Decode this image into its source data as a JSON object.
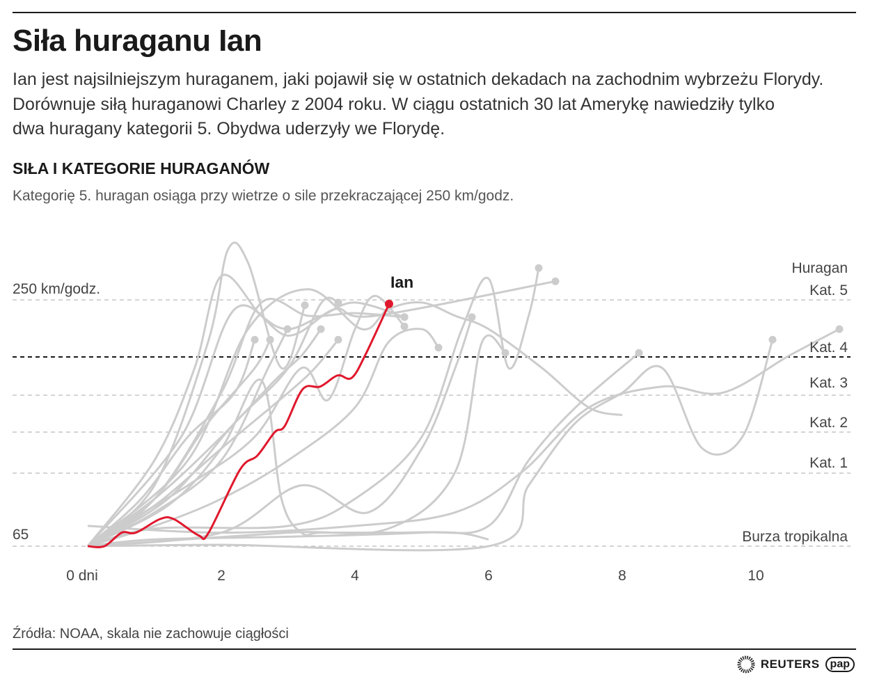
{
  "header": {
    "title": "Siła huraganu Ian",
    "description": [
      "Ian jest najsilniejszym huraganem, jaki pojawił się w ostatnich dekadach na zachodnim wybrzeżu Florydy.",
      "Dorównuje siłą huraganowi Charley z 2004 roku. W ciągu ostatnich 30 lat Amerykę nawiedziły tylko",
      "dwa huragany kategorii 5. Obydwa uderzyły we Florydę."
    ],
    "subtitle": "SIŁA I KATEGORIE HURAGANÓW",
    "note": "Kategorię 5. huragan osiąga przy wietrze o sile przekraczającej 250 km/godz."
  },
  "footer": {
    "source": "Źródła: NOAA, skala nie zachowuje ciągłości",
    "logos": [
      "REUTERS",
      "pap"
    ]
  },
  "chart_data": {
    "type": "line",
    "title": "SIŁA I KATEGORIE HURAGANÓW",
    "xlabel": "",
    "ylabel": "",
    "x_ticks": [
      {
        "value": 0,
        "label": "0 dni"
      },
      {
        "value": 2,
        "label": "2"
      },
      {
        "value": 4,
        "label": "4"
      },
      {
        "value": 6,
        "label": "6"
      },
      {
        "value": 8,
        "label": "8"
      },
      {
        "value": 10,
        "label": "10"
      }
    ],
    "y_labels": [
      {
        "value": 252,
        "label": "250 km/godz."
      },
      {
        "value": 65,
        "label": "65"
      }
    ],
    "y_scale": "piecewise (non-continuous)",
    "categories": [
      {
        "name": "Burza tropikalna",
        "value": 65
      },
      {
        "name": "Kat. 1",
        "value": 119
      },
      {
        "name": "Kat. 2",
        "value": 154
      },
      {
        "name": "Kat. 3",
        "value": 178
      },
      {
        "name": "Kat. 4",
        "value": 209,
        "emphasis": true
      },
      {
        "name": "Huragan Kat. 5",
        "value": 252,
        "line1": "Huragan",
        "line2": "Kat. 5"
      }
    ],
    "colors": {
      "highlight": "#e0182d",
      "others": "#cccccc",
      "grid": "#bbbbbb"
    },
    "highlight": {
      "name": "Ian",
      "points": [
        [
          0,
          65
        ],
        [
          0.25,
          65
        ],
        [
          0.51,
          75
        ],
        [
          0.72,
          75
        ],
        [
          1.08,
          85
        ],
        [
          1.29,
          85
        ],
        [
          1.66,
          73
        ],
        [
          1.81,
          75
        ],
        [
          2.28,
          122
        ],
        [
          2.54,
          134
        ],
        [
          2.8,
          154
        ],
        [
          2.95,
          158
        ],
        [
          3.22,
          183
        ],
        [
          3.48,
          185
        ],
        [
          3.74,
          194
        ],
        [
          3.95,
          192
        ],
        [
          4.16,
          211
        ],
        [
          4.51,
          249
        ]
      ]
    },
    "others": [
      {
        "points": [
          [
            0,
            65
          ],
          [
            1,
            110
          ],
          [
            1.8,
            220
          ],
          [
            2.1,
            290
          ],
          [
            2.4,
            280
          ],
          [
            2.9,
            200
          ],
          [
            3.25,
            248
          ]
        ],
        "end_dot": true
      },
      {
        "points": [
          [
            0,
            65
          ],
          [
            1,
            130
          ],
          [
            1.6,
            200
          ],
          [
            2,
            270
          ],
          [
            2.6,
            240
          ],
          [
            3,
            230
          ],
          [
            3.5,
            240
          ],
          [
            4,
            250
          ],
          [
            4.74,
            239
          ]
        ],
        "end_dot": true
      },
      {
        "points": [
          [
            0,
            65
          ],
          [
            0.8,
            100
          ],
          [
            1.5,
            150
          ],
          [
            2.2,
            180
          ],
          [
            2.5,
            222
          ]
        ],
        "end_dot": true
      },
      {
        "points": [
          [
            0,
            65
          ],
          [
            1,
            100
          ],
          [
            1.8,
            160
          ],
          [
            2.5,
            200
          ],
          [
            2.73,
            222
          ]
        ],
        "end_dot": true
      },
      {
        "points": [
          [
            0,
            65
          ],
          [
            1,
            90
          ],
          [
            2,
            130
          ],
          [
            2.7,
            200
          ],
          [
            2.99,
            230
          ]
        ],
        "end_dot": true
      },
      {
        "points": [
          [
            0,
            65
          ],
          [
            1.2,
            95
          ],
          [
            2,
            140
          ],
          [
            2.6,
            190
          ],
          [
            2.9,
            100
          ],
          [
            3.2,
            75
          ],
          [
            3.5,
            75
          ],
          [
            4.5,
            75
          ],
          [
            5.5,
            75
          ],
          [
            6,
            70
          ]
        ],
        "end_dot": false
      },
      {
        "points": [
          [
            0,
            65
          ],
          [
            1,
            100
          ],
          [
            2,
            150
          ],
          [
            2.8,
            190
          ],
          [
            3.2,
            210
          ],
          [
            3.49,
            230
          ]
        ],
        "end_dot": true
      },
      {
        "points": [
          [
            0,
            65
          ],
          [
            1.2,
            100
          ],
          [
            2.2,
            160
          ],
          [
            3,
            200
          ],
          [
            3.5,
            250
          ],
          [
            3.75,
            250
          ]
        ],
        "end_dot": true
      },
      {
        "points": [
          [
            0,
            65
          ],
          [
            1,
            95
          ],
          [
            2,
            140
          ],
          [
            3,
            180
          ],
          [
            3.4,
            200
          ],
          [
            3.75,
            222
          ]
        ],
        "end_dot": true
      },
      {
        "points": [
          [
            0,
            65
          ],
          [
            0.5,
            80
          ],
          [
            1.5,
            110
          ],
          [
            2.5,
            150
          ],
          [
            3.2,
            200
          ],
          [
            3.6,
            175
          ],
          [
            4,
            230
          ],
          [
            4.3,
            255
          ],
          [
            4.74,
            232
          ]
        ],
        "end_dot": true
      },
      {
        "points": [
          [
            0,
            65
          ],
          [
            1,
            80
          ],
          [
            2,
            100
          ],
          [
            3,
            130
          ],
          [
            4,
            170
          ],
          [
            4.5,
            220
          ],
          [
            5,
            230
          ],
          [
            5.25,
            216
          ]
        ],
        "end_dot": true
      },
      {
        "points": [
          [
            0,
            65
          ],
          [
            2,
            75
          ],
          [
            3.2,
            110
          ],
          [
            4.2,
            90
          ],
          [
            5,
            140
          ],
          [
            5.5,
            200
          ],
          [
            5.75,
            239
          ]
        ],
        "end_dot": true
      },
      {
        "points": [
          [
            0,
            65
          ],
          [
            1,
            78
          ],
          [
            3,
            80
          ],
          [
            4,
            100
          ],
          [
            5,
            150
          ],
          [
            5.6,
            230
          ],
          [
            6,
            268
          ],
          [
            6.3,
            200
          ],
          [
            6.6,
            240
          ],
          [
            6.75,
            276
          ]
        ],
        "end_dot": true
      },
      {
        "points": [
          [
            0,
            65
          ],
          [
            3,
            75
          ],
          [
            4.5,
            78
          ],
          [
            5.5,
            120
          ],
          [
            5.9,
            220
          ],
          [
            6.25,
            212
          ]
        ],
        "end_dot": true
      },
      {
        "points": [
          [
            0,
            65
          ],
          [
            1,
            70
          ],
          [
            3,
            72
          ],
          [
            5,
            75
          ],
          [
            6,
            80
          ],
          [
            6.6,
            130
          ],
          [
            7.3,
            170
          ],
          [
            8.25,
            212
          ]
        ],
        "end_dot": true
      },
      {
        "points": [
          [
            0,
            65
          ],
          [
            2,
            66
          ],
          [
            6,
            65
          ],
          [
            6.6,
            110
          ],
          [
            7.3,
            160
          ],
          [
            8,
            180
          ],
          [
            8.6,
            200
          ],
          [
            9.2,
            140
          ],
          [
            9.8,
            150
          ],
          [
            10.25,
            222
          ]
        ],
        "end_dot": true
      },
      {
        "points": [
          [
            0,
            80
          ],
          [
            2,
            75
          ],
          [
            4,
            80
          ],
          [
            5.5,
            90
          ],
          [
            6.5,
            120
          ],
          [
            7.5,
            170
          ],
          [
            8.6,
            185
          ],
          [
            9.5,
            180
          ],
          [
            10.5,
            210
          ],
          [
            11.25,
            230
          ]
        ],
        "end_dot": true
      },
      {
        "points": [
          [
            0,
            65
          ],
          [
            1.5,
            130
          ],
          [
            2.4,
            230
          ],
          [
            3.3,
            260
          ],
          [
            4.1,
            230
          ],
          [
            4.5,
            245
          ],
          [
            5,
            250
          ],
          [
            5.5,
            240
          ],
          [
            6,
            230
          ],
          [
            6.8,
            200
          ],
          [
            7.5,
            170
          ],
          [
            8,
            165
          ]
        ],
        "end_dot": false
      },
      {
        "points": [
          [
            0,
            65
          ],
          [
            1,
            100
          ],
          [
            2,
            180
          ],
          [
            2.6,
            250
          ],
          [
            3.3,
            240
          ],
          [
            4,
            242
          ],
          [
            4.74,
            239
          ]
        ],
        "end_dot": true
      },
      {
        "points": [
          [
            0,
            65
          ],
          [
            1.4,
            150
          ],
          [
            2.2,
            245
          ],
          [
            3,
            225
          ],
          [
            3.7,
            245
          ],
          [
            4.3,
            240
          ],
          [
            7,
            266
          ]
        ],
        "end_dot": true
      }
    ]
  }
}
